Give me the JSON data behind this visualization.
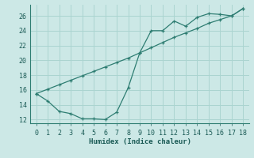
{
  "title": "",
  "xlabel": "Humidex (Indice chaleur)",
  "bg_color": "#cce8e6",
  "grid_color": "#aad4d0",
  "line_color": "#2e7d72",
  "xlim": [
    -0.5,
    18.5
  ],
  "ylim": [
    11.5,
    27.5
  ],
  "xticks": [
    0,
    1,
    2,
    3,
    4,
    5,
    6,
    7,
    8,
    9,
    10,
    11,
    12,
    13,
    14,
    15,
    16,
    17,
    18
  ],
  "yticks": [
    12,
    14,
    16,
    18,
    20,
    22,
    24,
    26
  ],
  "line1_x": [
    0,
    1,
    2,
    3,
    4,
    5,
    6,
    7,
    8,
    9,
    10,
    11,
    12,
    13,
    14,
    15,
    16,
    17,
    18
  ],
  "line1_y": [
    15.5,
    14.5,
    13.1,
    12.8,
    12.1,
    12.1,
    12.0,
    13.0,
    16.3,
    21.0,
    24.0,
    24.0,
    25.3,
    24.6,
    25.8,
    26.3,
    26.2,
    26.0,
    27.0
  ],
  "line2_x": [
    0,
    1,
    2,
    3,
    4,
    5,
    6,
    7,
    8,
    9,
    10,
    11,
    12,
    13,
    14,
    15,
    16,
    17,
    18
  ],
  "line2_y": [
    15.5,
    16.1,
    16.7,
    17.3,
    17.9,
    18.5,
    19.1,
    19.7,
    20.3,
    21.0,
    21.7,
    22.4,
    23.1,
    23.7,
    24.3,
    25.0,
    25.5,
    26.0,
    27.0
  ]
}
